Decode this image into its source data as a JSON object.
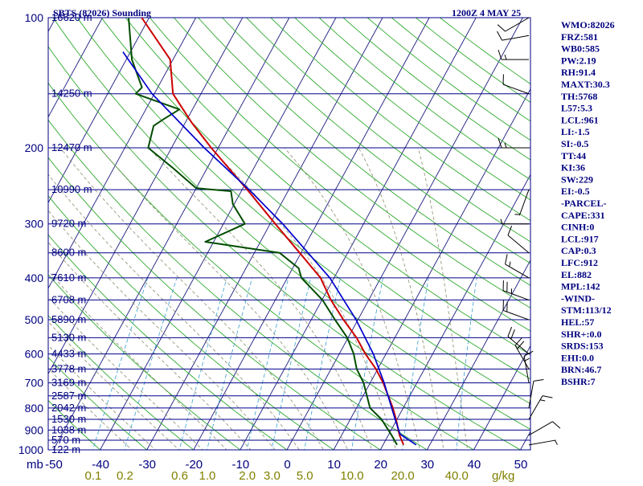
{
  "title_left": "SBTS (82026) Sounding",
  "title_right": "1200Z  4 MAY 25",
  "colors": {
    "axis": "#000080",
    "isobar": "#00008B",
    "isotherm": "#1a1a80",
    "dry_adiabat": "#2faa2f",
    "moist_adiabat": "#8c8c6e",
    "mixing_ratio": "#3aa0d0",
    "temperature": "#cc0000",
    "dewpoint": "#004d00",
    "parcel": "#0000cc",
    "wind": "#000000",
    "mixing_label": "#808000"
  },
  "chart_data": {
    "type": "line",
    "chart_kind": "skew-T log-P sounding",
    "title": "SBTS (82026) Sounding",
    "time": "1200Z  4 MAY 25",
    "pressure_axis": {
      "unit": "mb",
      "scale": "log",
      "range": [
        1000,
        100
      ],
      "tick_labels": [
        "100",
        "200",
        "300",
        "400",
        "500",
        "600",
        "700",
        "800",
        "900",
        "1000"
      ]
    },
    "temperature_axis": {
      "unit": "C",
      "range": [
        -50,
        50
      ],
      "tick_labels": [
        "-50",
        "-40",
        "-30",
        "-20",
        "-10",
        "0",
        "10",
        "20",
        "30",
        "40",
        "50"
      ]
    },
    "mixing_ratio_axis": {
      "unit": "g/kg",
      "tick_labels": [
        "0.1",
        "0.2",
        "0.6",
        "1.0",
        "2.0",
        "3.0",
        "5.0",
        "10.0",
        "20.0",
        "40.0"
      ]
    },
    "height_labels": [
      {
        "p": 100,
        "label": "16620 m"
      },
      {
        "p": 150,
        "label": "14250 m"
      },
      {
        "p": 200,
        "label": "12470 m"
      },
      {
        "p": 250,
        "label": "10990 m"
      },
      {
        "p": 300,
        "label": "9720 m"
      },
      {
        "p": 350,
        "label": "8600 m"
      },
      {
        "p": 400,
        "label": "7610 m"
      },
      {
        "p": 450,
        "label": "6708 m"
      },
      {
        "p": 500,
        "label": "5890 m"
      },
      {
        "p": 550,
        "label": "5130 m"
      },
      {
        "p": 600,
        "label": "4433 m"
      },
      {
        "p": 650,
        "label": "3778 m"
      },
      {
        "p": 700,
        "label": "3169 m"
      },
      {
        "p": 750,
        "label": "2587 m"
      },
      {
        "p": 800,
        "label": "2042 m"
      },
      {
        "p": 850,
        "label": "1530 m"
      },
      {
        "p": 900,
        "label": "1038 m"
      },
      {
        "p": 950,
        "label": "570 m"
      },
      {
        "p": 1000,
        "label": "122 m"
      }
    ],
    "series": [
      {
        "name": "Temperature",
        "points": [
          {
            "p": 974,
            "t": 24.4
          },
          {
            "p": 925,
            "t": 22.4
          },
          {
            "p": 850,
            "t": 19.8
          },
          {
            "p": 800,
            "t": 17.8
          },
          {
            "p": 700,
            "t": 12.8
          },
          {
            "p": 650,
            "t": 9.6
          },
          {
            "p": 600,
            "t": 5.6
          },
          {
            "p": 550,
            "t": 1.8
          },
          {
            "p": 500,
            "t": -3.1
          },
          {
            "p": 450,
            "t": -8.1
          },
          {
            "p": 400,
            "t": -12.9
          },
          {
            "p": 350,
            "t": -20.3
          },
          {
            "p": 300,
            "t": -28.9
          },
          {
            "p": 250,
            "t": -38.9
          },
          {
            "p": 200,
            "t": -51.5
          },
          {
            "p": 175,
            "t": -58.6
          },
          {
            "p": 150,
            "t": -66.0
          },
          {
            "p": 125,
            "t": -70.6
          },
          {
            "p": 100,
            "t": -81.6
          }
        ]
      },
      {
        "name": "Dewpoint",
        "points": [
          {
            "p": 974,
            "t": 23.0
          },
          {
            "p": 925,
            "t": 20.7
          },
          {
            "p": 850,
            "t": 16.7
          },
          {
            "p": 800,
            "t": 12.9
          },
          {
            "p": 700,
            "t": 8.6
          },
          {
            "p": 650,
            "t": 5.5
          },
          {
            "p": 600,
            "t": 3.1
          },
          {
            "p": 550,
            "t": -0.2
          },
          {
            "p": 500,
            "t": -4.9
          },
          {
            "p": 450,
            "t": -9.9
          },
          {
            "p": 400,
            "t": -17.0
          },
          {
            "p": 380,
            "t": -18.7
          },
          {
            "p": 350,
            "t": -24.6
          },
          {
            "p": 330,
            "t": -41.8
          },
          {
            "p": 300,
            "t": -35.4
          },
          {
            "p": 270,
            "t": -40.3
          },
          {
            "p": 252,
            "t": -42.2
          },
          {
            "p": 248,
            "t": -50.0
          },
          {
            "p": 222,
            "t": -57.6
          },
          {
            "p": 200,
            "t": -65.0
          },
          {
            "p": 178,
            "t": -66.4
          },
          {
            "p": 172,
            "t": -65.1
          },
          {
            "p": 163,
            "t": -62.8
          },
          {
            "p": 150,
            "t": -74.0
          },
          {
            "p": 145,
            "t": -73.4
          },
          {
            "p": 125,
            "t": -78.8
          },
          {
            "p": 100,
            "t": -84.4
          }
        ]
      },
      {
        "name": "Parcel",
        "points": [
          {
            "p": 974,
            "t": 27.1
          },
          {
            "p": 920,
            "t": 22.4
          },
          {
            "p": 850,
            "t": 19.6
          },
          {
            "p": 700,
            "t": 13.0
          },
          {
            "p": 600,
            "t": 7.3
          },
          {
            "p": 500,
            "t": -0.4
          },
          {
            "p": 400,
            "t": -10.9
          },
          {
            "p": 300,
            "t": -27.3
          },
          {
            "p": 250,
            "t": -38.5
          },
          {
            "p": 200,
            "t": -53.0
          },
          {
            "p": 150,
            "t": -70.5
          },
          {
            "p": 120,
            "t": -81.6
          }
        ]
      }
    ],
    "winds": [
      {
        "p": 974,
        "dir": 80,
        "spd": 5
      },
      {
        "p": 925,
        "dir": 60,
        "spd": 10
      },
      {
        "p": 850,
        "dir": 30,
        "spd": 15
      },
      {
        "p": 800,
        "dir": 10,
        "spd": 10
      },
      {
        "p": 700,
        "dir": 350,
        "spd": 15
      },
      {
        "p": 650,
        "dir": 330,
        "spd": 20
      },
      {
        "p": 600,
        "dir": 310,
        "spd": 20
      },
      {
        "p": 500,
        "dir": 290,
        "spd": 20
      },
      {
        "p": 450,
        "dir": 290,
        "spd": 25
      },
      {
        "p": 400,
        "dir": 300,
        "spd": 15
      },
      {
        "p": 350,
        "dir": 310,
        "spd": 10
      },
      {
        "p": 300,
        "dir": 270,
        "spd": 5
      },
      {
        "p": 250,
        "dir": 200,
        "spd": 5
      },
      {
        "p": 200,
        "dir": 270,
        "spd": 15
      },
      {
        "p": 150,
        "dir": 290,
        "spd": 10
      },
      {
        "p": 125,
        "dir": 270,
        "spd": 15
      },
      {
        "p": 110,
        "dir": 260,
        "spd": 10
      },
      {
        "p": 100,
        "dir": 240,
        "spd": 10
      }
    ]
  },
  "indices": [
    "WMO:82026",
    "FRZ:581",
    "WB0:585",
    "PW:2.19",
    "RH:91.4",
    "MAXT:30.3",
    "TH:5768",
    "L57:5.3",
    "LCL:961",
    "LI:-1.5",
    "SI:-0.5",
    "TT:44",
    "KI:36",
    "SW:229",
    "EI:-0.5",
    "-PARCEL-",
    "CAPE:331",
    "CINH:0",
    "LCL:917",
    "CAP:0.3",
    "LFC:912",
    "EL:882",
    "MPL:142",
    "-WIND-",
    "STM:113/12",
    "HEL:57",
    "SHR+:0.0",
    "SRDS:153",
    "EHI:0.0",
    "BRN:46.7",
    "BSHR:7"
  ]
}
